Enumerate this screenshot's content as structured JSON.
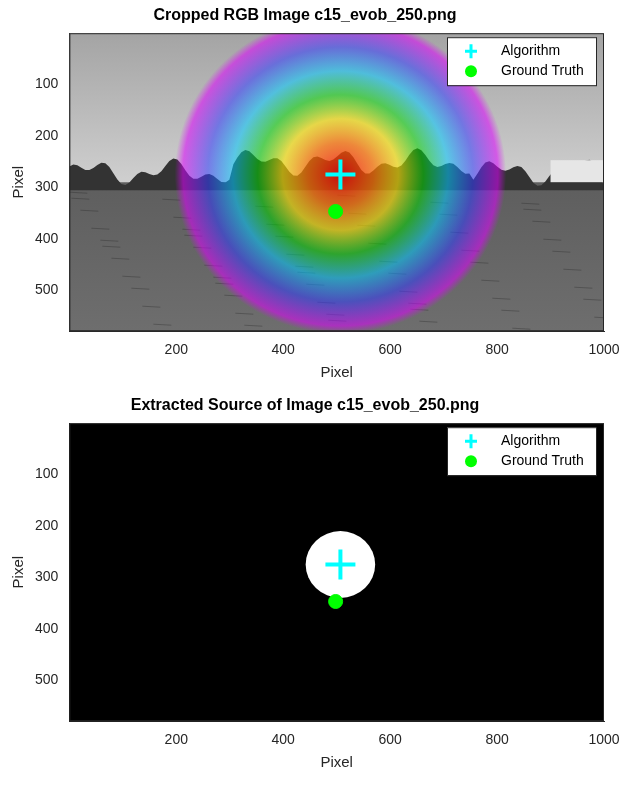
{
  "chart_data": [
    {
      "type": "scatter",
      "title": "Cropped RGB Image c15_evob_250.png",
      "x_label": "Pixel",
      "y_label": "Pixel",
      "xlim": [
        0,
        1000
      ],
      "ylim": [
        580,
        0
      ],
      "xticks": [
        200,
        400,
        600,
        800,
        1000
      ],
      "yticks": [
        100,
        200,
        300,
        400,
        500
      ],
      "grid": false,
      "legend": "upper right",
      "heatmap": {
        "x": 507,
        "y": 275,
        "radius": 310
      },
      "series": [
        {
          "name": "Algorithm",
          "color": "#00ffff",
          "marker": "plus",
          "x": [
            507
          ],
          "y": [
            275
          ]
        },
        {
          "name": "Ground Truth",
          "color": "#00ff00",
          "marker": "circle",
          "x": [
            498
          ],
          "y": [
            347
          ]
        }
      ]
    },
    {
      "type": "scatter",
      "title": "Extracted Source of Image c15_evob_250.png",
      "x_label": "Pixel",
      "y_label": "Pixel",
      "xlim": [
        0,
        1000
      ],
      "ylim": [
        580,
        0
      ],
      "xticks": [
        200,
        400,
        600,
        800,
        1000
      ],
      "yticks": [
        100,
        200,
        300,
        400,
        500
      ],
      "grid": false,
      "legend": "upper right",
      "source_region": {
        "x": 507,
        "y": 275,
        "radius": 65
      },
      "series": [
        {
          "name": "Algorithm",
          "color": "#00ffff",
          "marker": "plus",
          "x": [
            507
          ],
          "y": [
            275
          ]
        },
        {
          "name": "Ground Truth",
          "color": "#00ff00",
          "marker": "circle",
          "x": [
            498
          ],
          "y": [
            347
          ]
        }
      ]
    }
  ]
}
